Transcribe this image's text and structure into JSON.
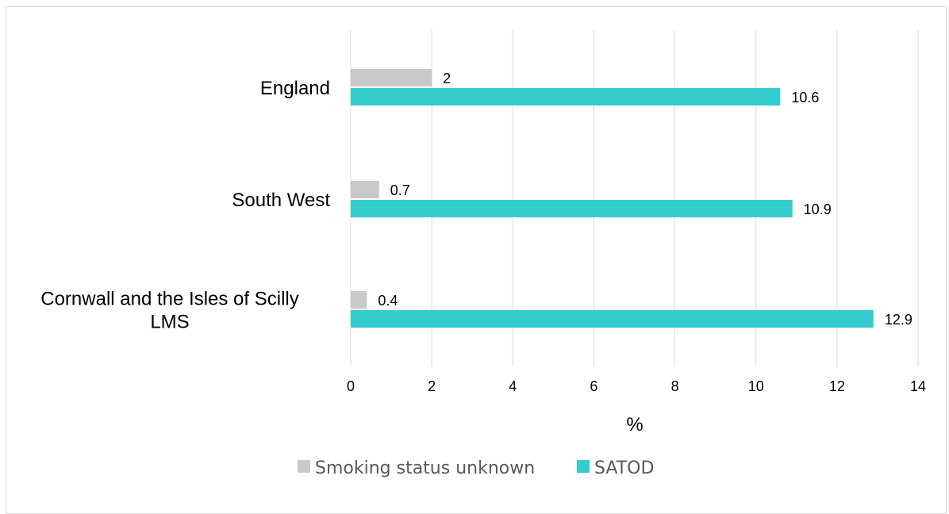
{
  "chart_data": {
    "type": "bar",
    "orientation": "horizontal",
    "categories": [
      "England",
      "South West",
      "Cornwall and the Isles of Scilly LMS"
    ],
    "category_label_lines": [
      [
        "England"
      ],
      [
        "South West"
      ],
      [
        "Cornwall and the Isles of Scilly",
        "LMS"
      ]
    ],
    "series": [
      {
        "name": "Smoking status unknown",
        "values": [
          2,
          0.7,
          0.4
        ],
        "labels": [
          "2",
          "0.7",
          "0.4"
        ],
        "color": "#c9c9c9"
      },
      {
        "name": "SATOD",
        "values": [
          10.6,
          10.9,
          12.9
        ],
        "labels": [
          "10.6",
          "10.9",
          "12.9"
        ],
        "color": "#33cccc"
      }
    ],
    "xlabel": "%",
    "xlim": [
      0,
      14
    ],
    "xticks": [
      "0",
      "2",
      "4",
      "6",
      "8",
      "10",
      "12",
      "14"
    ],
    "grid": true,
    "legend_position": "bottom"
  }
}
